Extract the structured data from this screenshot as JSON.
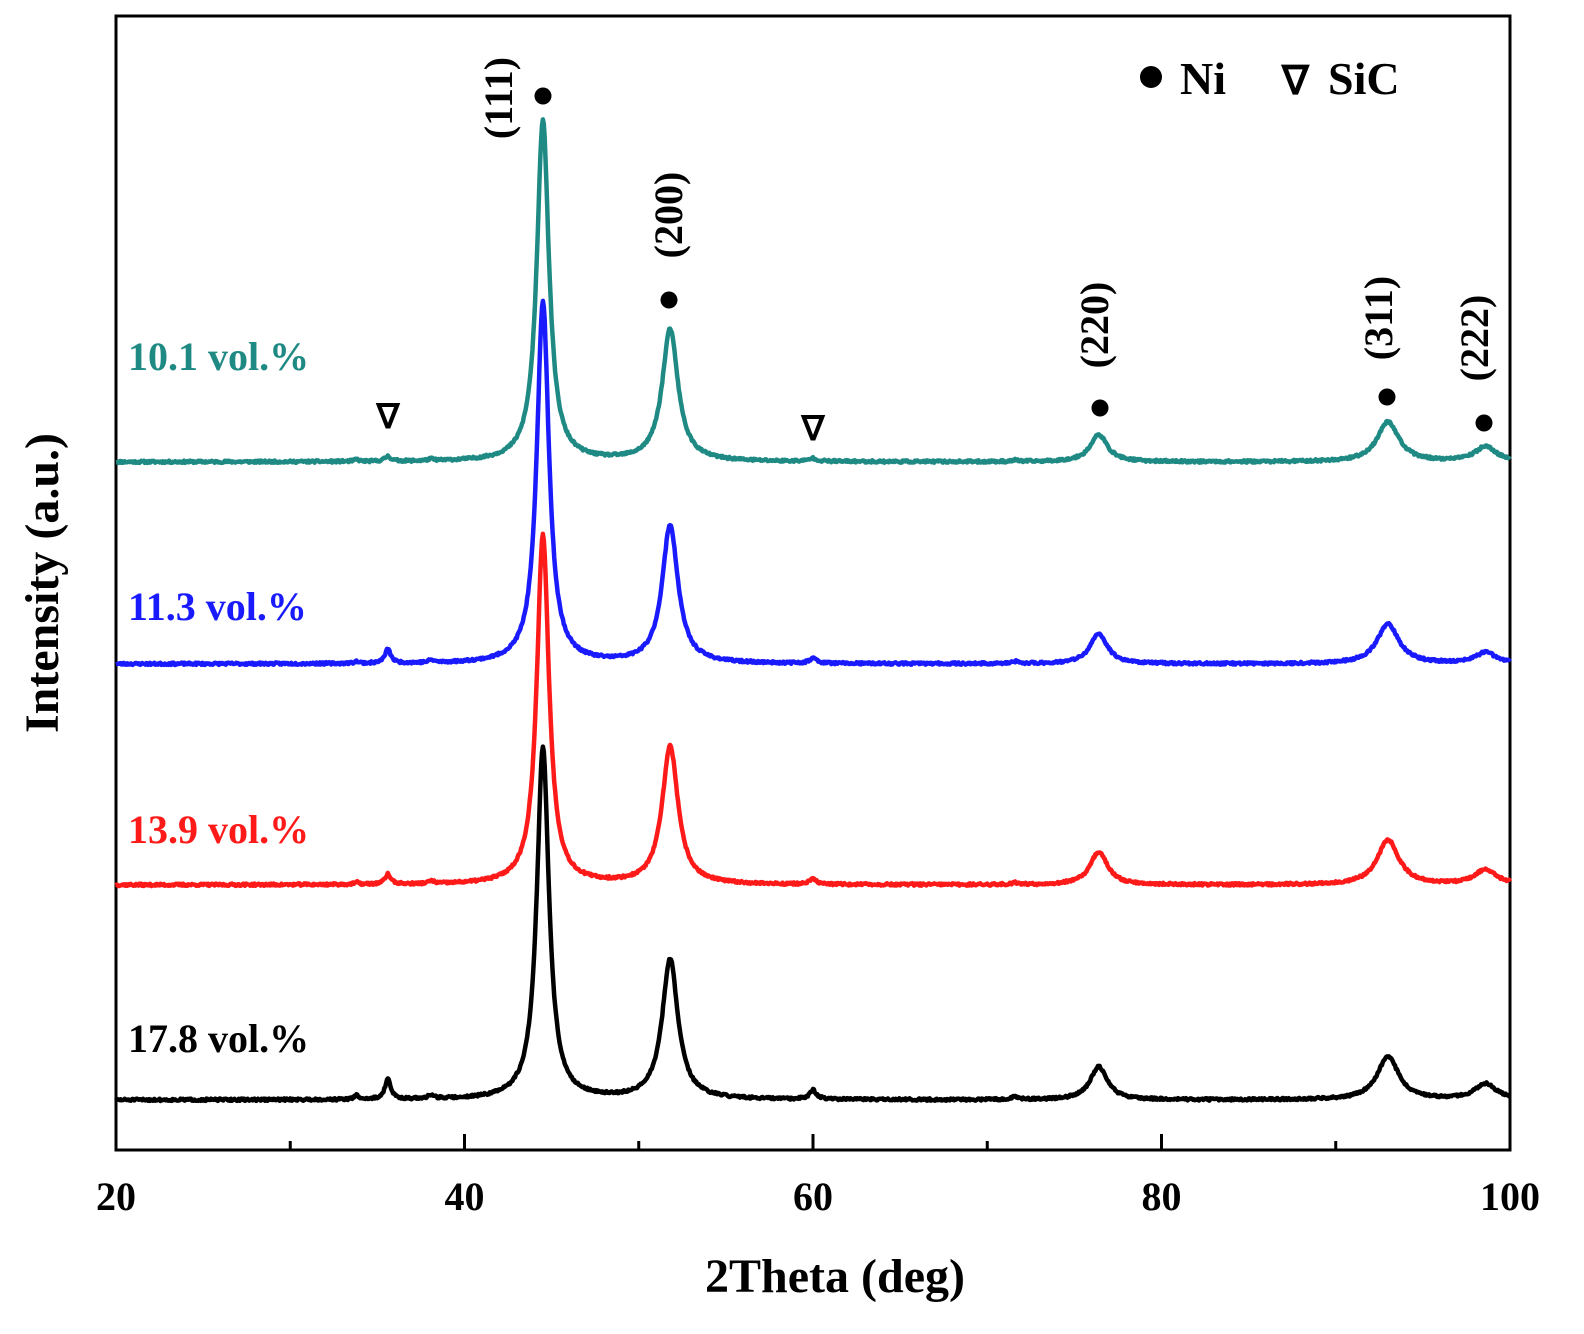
{
  "chart_data": {
    "type": "line",
    "title": "",
    "xlabel": "2Theta (deg)",
    "ylabel": "Intensity (a.u.)",
    "xlim": [
      20,
      100
    ],
    "x_major_ticks": [
      20,
      40,
      60,
      80,
      100
    ],
    "x_tick_labels": [
      "20",
      "40",
      "60",
      "80",
      "100"
    ],
    "x_minor_ticks": [
      30,
      50,
      70,
      90
    ],
    "y_ticks": [],
    "grid": false,
    "legend": {
      "position": "top-right",
      "entries": [
        {
          "symbol": "●",
          "label": "Ni"
        },
        {
          "symbol": "∇",
          "label": "SiC"
        }
      ]
    },
    "series": [
      {
        "name": "10.1 vol.%",
        "color": "#1f8a84",
        "baseline": 100,
        "noise_seed": 11,
        "peaks": [
          {
            "x": 33.8,
            "h": 2.0,
            "w": 0.15
          },
          {
            "x": 35.6,
            "h": 5.0,
            "w": 0.2
          },
          {
            "x": 38.1,
            "h": 1.6,
            "w": 0.2
          },
          {
            "x": 44.5,
            "h": 342,
            "w": 0.42
          },
          {
            "x": 51.8,
            "h": 132,
            "w": 0.55
          },
          {
            "x": 60.0,
            "h": 3,
            "w": 0.25
          },
          {
            "x": 71.6,
            "h": 1.4,
            "w": 0.2
          },
          {
            "x": 76.4,
            "h": 27,
            "w": 0.6
          },
          {
            "x": 93.0,
            "h": 40,
            "w": 0.75
          },
          {
            "x": 98.6,
            "h": 15,
            "w": 0.75
          }
        ]
      },
      {
        "name": "11.3 vol.%",
        "color": "#1a1aff",
        "baseline": 100,
        "noise_seed": 23,
        "peaks": [
          {
            "x": 33.8,
            "h": 2.0,
            "w": 0.15
          },
          {
            "x": 35.6,
            "h": 14,
            "w": 0.2
          },
          {
            "x": 38.1,
            "h": 2.5,
            "w": 0.2
          },
          {
            "x": 44.5,
            "h": 362,
            "w": 0.42
          },
          {
            "x": 51.8,
            "h": 138,
            "w": 0.55
          },
          {
            "x": 60.0,
            "h": 5,
            "w": 0.25
          },
          {
            "x": 71.6,
            "h": 2,
            "w": 0.2
          },
          {
            "x": 76.4,
            "h": 30,
            "w": 0.6
          },
          {
            "x": 93.0,
            "h": 40,
            "w": 0.75
          },
          {
            "x": 98.6,
            "h": 11,
            "w": 0.75
          }
        ]
      },
      {
        "name": "13.9 vol.%",
        "color": "#ff1a1a",
        "baseline": 100,
        "noise_seed": 37,
        "peaks": [
          {
            "x": 33.8,
            "h": 2.0,
            "w": 0.15
          },
          {
            "x": 35.6,
            "h": 10,
            "w": 0.2
          },
          {
            "x": 38.1,
            "h": 2.5,
            "w": 0.2
          },
          {
            "x": 44.5,
            "h": 350,
            "w": 0.42
          },
          {
            "x": 51.8,
            "h": 138,
            "w": 0.55
          },
          {
            "x": 60.0,
            "h": 5,
            "w": 0.25
          },
          {
            "x": 71.6,
            "h": 2,
            "w": 0.2
          },
          {
            "x": 76.4,
            "h": 33,
            "w": 0.6
          },
          {
            "x": 93.0,
            "h": 45,
            "w": 0.75
          },
          {
            "x": 98.6,
            "h": 15,
            "w": 0.75
          }
        ]
      },
      {
        "name": "17.8 vol.%",
        "color": "#000000",
        "baseline": 100,
        "noise_seed": 51,
        "peaks": [
          {
            "x": 33.8,
            "h": 4.0,
            "w": 0.15
          },
          {
            "x": 35.6,
            "h": 20,
            "w": 0.2
          },
          {
            "x": 38.1,
            "h": 4,
            "w": 0.2
          },
          {
            "x": 44.5,
            "h": 352,
            "w": 0.42
          },
          {
            "x": 51.8,
            "h": 140,
            "w": 0.55
          },
          {
            "x": 60.0,
            "h": 9,
            "w": 0.25
          },
          {
            "x": 71.6,
            "h": 3,
            "w": 0.2
          },
          {
            "x": 76.4,
            "h": 33,
            "w": 0.6
          },
          {
            "x": 93.0,
            "h": 43,
            "w": 0.75
          },
          {
            "x": 98.6,
            "h": 16,
            "w": 0.75
          }
        ]
      }
    ],
    "annotations": {
      "ni_markers": [
        {
          "x": 44.5,
          "label": "(111)"
        },
        {
          "x": 51.8,
          "label": "(200)"
        },
        {
          "x": 76.4,
          "label": "(220)"
        },
        {
          "x": 93.0,
          "label": "(311)"
        },
        {
          "x": 98.6,
          "label": "(222)"
        }
      ],
      "sic_markers": [
        {
          "x": 35.6,
          "symbol": "∇"
        },
        {
          "x": 60.0,
          "symbol": "∇"
        }
      ]
    }
  }
}
